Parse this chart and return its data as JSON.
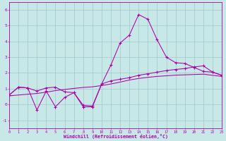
{
  "bg_color": "#c8e8e8",
  "grid_color": "#a0c8c8",
  "line_color": "#aa00aa",
  "xlabel": "Windchill (Refroidissement éolien,°C)",
  "xlim": [
    0,
    23
  ],
  "ylim": [
    -1.5,
    6.5
  ],
  "xticks": [
    0,
    1,
    2,
    3,
    4,
    5,
    6,
    7,
    8,
    9,
    10,
    11,
    12,
    13,
    14,
    15,
    16,
    17,
    18,
    19,
    20,
    21,
    22,
    23
  ],
  "yticks": [
    -1,
    0,
    1,
    2,
    3,
    4,
    5,
    6
  ],
  "line_spike": [
    0.6,
    1.1,
    1.05,
    0.85,
    1.05,
    1.1,
    0.8,
    0.75,
    -0.05,
    -0.1,
    1.3,
    2.5,
    3.9,
    4.4,
    5.7,
    5.4,
    4.1,
    3.0,
    2.65,
    2.6,
    2.35,
    2.1,
    2.05,
    1.85
  ],
  "line_mid": [
    0.6,
    1.1,
    1.05,
    -0.35,
    0.85,
    -0.15,
    0.45,
    0.75,
    -0.15,
    -0.15,
    1.3,
    1.5,
    1.6,
    1.7,
    1.85,
    1.95,
    2.05,
    2.15,
    2.22,
    2.28,
    2.38,
    2.45,
    2.05,
    1.85
  ],
  "line_diag": [
    0.55,
    0.6,
    0.65,
    0.7,
    0.78,
    0.88,
    0.95,
    1.02,
    1.08,
    1.12,
    1.2,
    1.3,
    1.42,
    1.55,
    1.65,
    1.72,
    1.78,
    1.82,
    1.86,
    1.88,
    1.9,
    1.92,
    1.85,
    1.78
  ]
}
